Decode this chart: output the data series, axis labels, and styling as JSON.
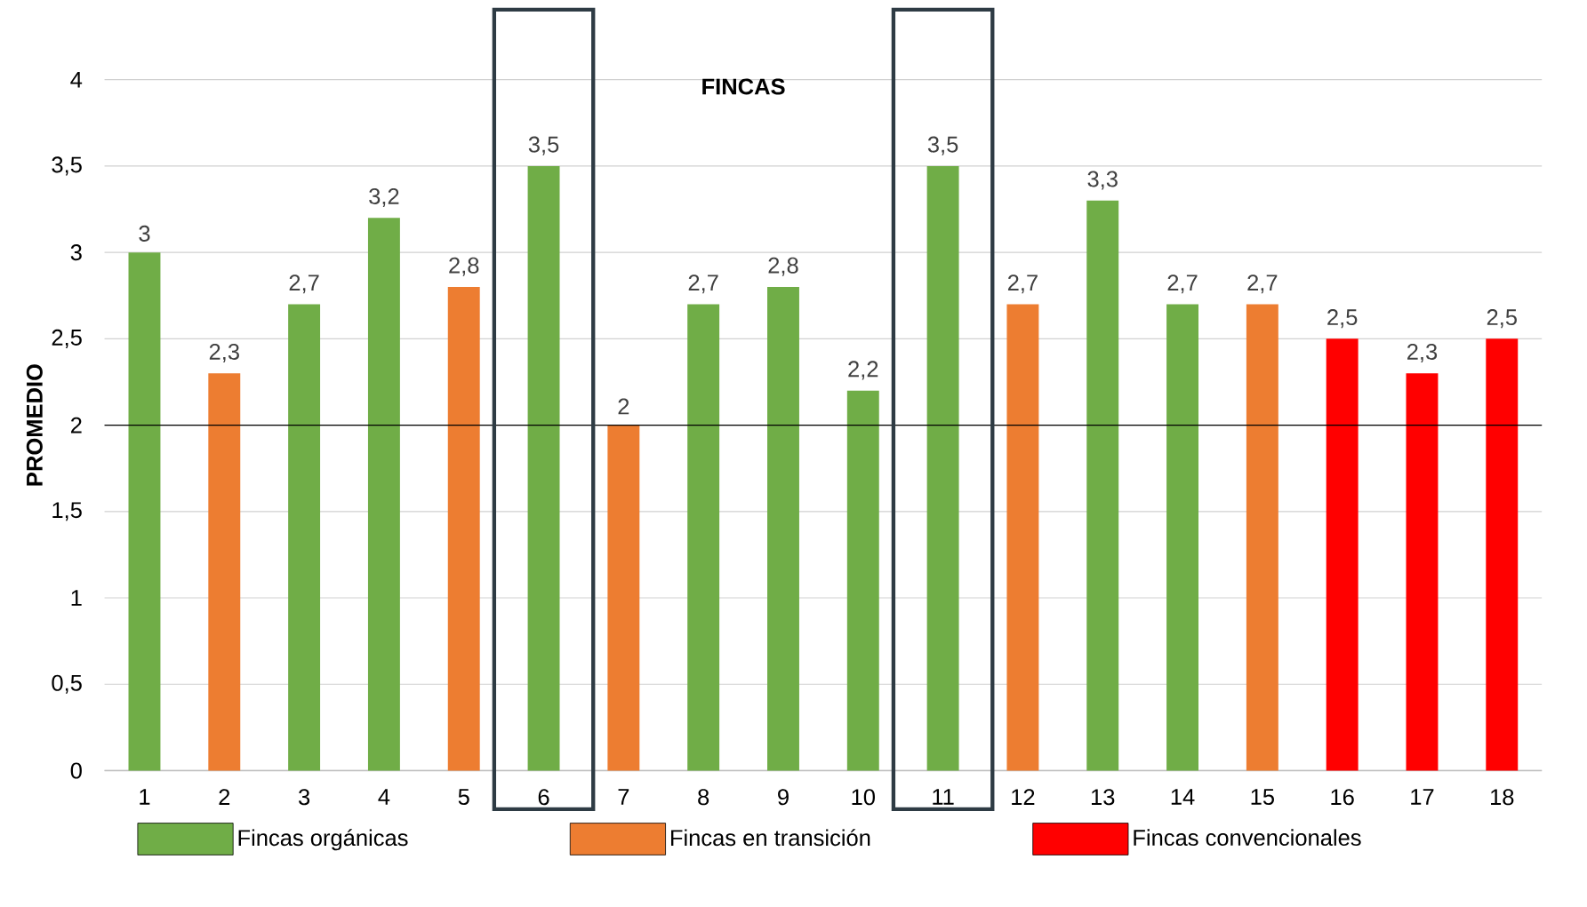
{
  "chart_data": {
    "type": "bar",
    "title": "FINCAS",
    "ylabel": "PROMEDIO",
    "categories": [
      "1",
      "2",
      "3",
      "4",
      "5",
      "6",
      "7",
      "8",
      "9",
      "10",
      "11",
      "12",
      "13",
      "14",
      "15",
      "16",
      "17",
      "18"
    ],
    "series": [
      {
        "name": "Fincas orgánicas",
        "color": "#70ad47",
        "values": [
          3,
          null,
          2.7,
          3.2,
          null,
          3.5,
          null,
          2.7,
          2.8,
          2.2,
          3.5,
          null,
          3.3,
          2.7,
          null,
          null,
          null,
          null
        ],
        "value_labels": [
          "3",
          null,
          "2,7",
          "3,2",
          null,
          "3,5",
          null,
          "2,7",
          "2,8",
          "2,2",
          "3,5",
          null,
          "3,3",
          "2,7",
          null,
          null,
          null,
          null
        ]
      },
      {
        "name": "Fincas en transición",
        "color": "#ed7d31",
        "values": [
          null,
          2.3,
          null,
          null,
          2.8,
          null,
          2,
          null,
          null,
          null,
          null,
          2.7,
          null,
          null,
          2.7,
          null,
          null,
          null
        ],
        "value_labels": [
          null,
          "2,3",
          null,
          null,
          "2,8",
          null,
          "2",
          null,
          null,
          null,
          null,
          "2,7",
          null,
          null,
          "2,7",
          null,
          null,
          null
        ]
      },
      {
        "name": "Fincas convencionales",
        "color": "#ff0000",
        "values": [
          null,
          null,
          null,
          null,
          null,
          null,
          null,
          null,
          null,
          null,
          null,
          null,
          null,
          null,
          null,
          2.5,
          2.3,
          2.5
        ],
        "value_labels": [
          null,
          null,
          null,
          null,
          null,
          null,
          null,
          null,
          null,
          null,
          null,
          null,
          null,
          null,
          null,
          "2,5",
          "2,3",
          "2,5"
        ]
      }
    ],
    "ylim": [
      0,
      4
    ],
    "yticks": [
      0,
      {
        "value": 0.5,
        "label": "0,5"
      },
      1,
      {
        "value": 1.5,
        "label": "1,5"
      },
      2,
      {
        "value": 2.5,
        "label": "2,5"
      },
      3,
      {
        "value": 3.5,
        "label": "3,5"
      },
      4
    ],
    "grid": "y",
    "legend": "bottom",
    "ref_lines": [
      {
        "axis": "y",
        "value": 2,
        "color": "#000000"
      }
    ]
  }
}
